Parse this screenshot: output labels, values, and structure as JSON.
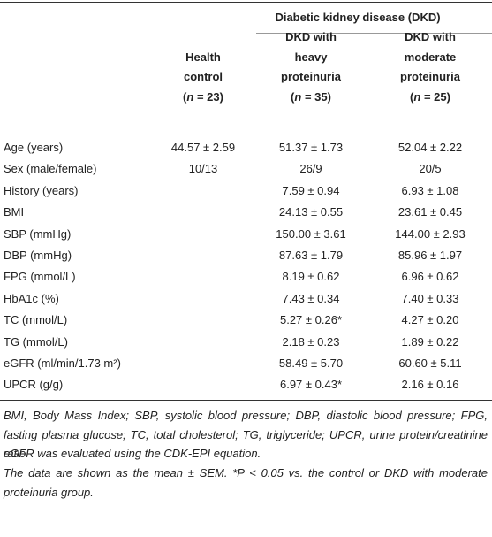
{
  "table": {
    "group_header": "Diabetic kidney disease (DKD)",
    "columns": [
      {
        "lines": [
          "Health",
          "control"
        ],
        "n": [
          "(",
          "n",
          " = 23)"
        ]
      },
      {
        "lines": [
          "DKD with",
          "heavy",
          "proteinuria"
        ],
        "n": [
          "(",
          "n",
          " = 35)"
        ]
      },
      {
        "lines": [
          "DKD with",
          "moderate",
          "proteinuria"
        ],
        "n": [
          "(",
          "n",
          " = 25)"
        ]
      }
    ],
    "rows": [
      [
        "Age (years)",
        "44.57 ± 2.59",
        "51.37 ± 1.73",
        "52.04 ± 2.22"
      ],
      [
        "Sex (male/female)",
        "10/13",
        "26/9",
        "20/5"
      ],
      [
        "History (years)",
        null,
        "7.59 ± 0.94",
        "6.93 ± 1.08"
      ],
      [
        "BMI",
        null,
        "24.13 ± 0.55",
        "23.61 ± 0.45"
      ],
      [
        "SBP (mmHg)",
        null,
        "150.00 ± 3.61",
        "144.00 ± 2.93"
      ],
      [
        "DBP (mmHg)",
        null,
        "87.63 ± 1.79",
        "85.96 ± 1.97"
      ],
      [
        "FPG (mmol/L)",
        null,
        "8.19 ± 0.62",
        "6.96 ± 0.62"
      ],
      [
        "HbA1c (%)",
        null,
        "7.43 ± 0.34",
        "7.40 ± 0.33"
      ],
      [
        "TC (mmol/L)",
        null,
        "5.27 ± 0.26*",
        "4.27 ± 0.20"
      ],
      [
        "TG (mmol/L)",
        null,
        "2.18 ± 0.23",
        "1.89 ± 0.22"
      ],
      [
        "eGFR (ml/min/1.73 m²)",
        null,
        "58.49 ± 5.70",
        "60.60 ± 5.11"
      ],
      [
        "UPCR (g/g)",
        null,
        "6.97 ± 0.43*",
        "2.16 ± 0.16"
      ]
    ],
    "footnotes": [
      "BMI, Body Mass Index; SBP, systolic blood pressure; DBP, diastolic blood pressure; FPG, fasting plasma glucose; TC, total cholesterol; TG, triglyceride; UPCR, urine protein/creatinine ratio.",
      "eGFR was evaluated using the CDK-EPI equation.",
      "The data are shown as the mean ± SEM. *P < 0.05 vs. the control or DKD with moderate proteinuria group."
    ]
  }
}
